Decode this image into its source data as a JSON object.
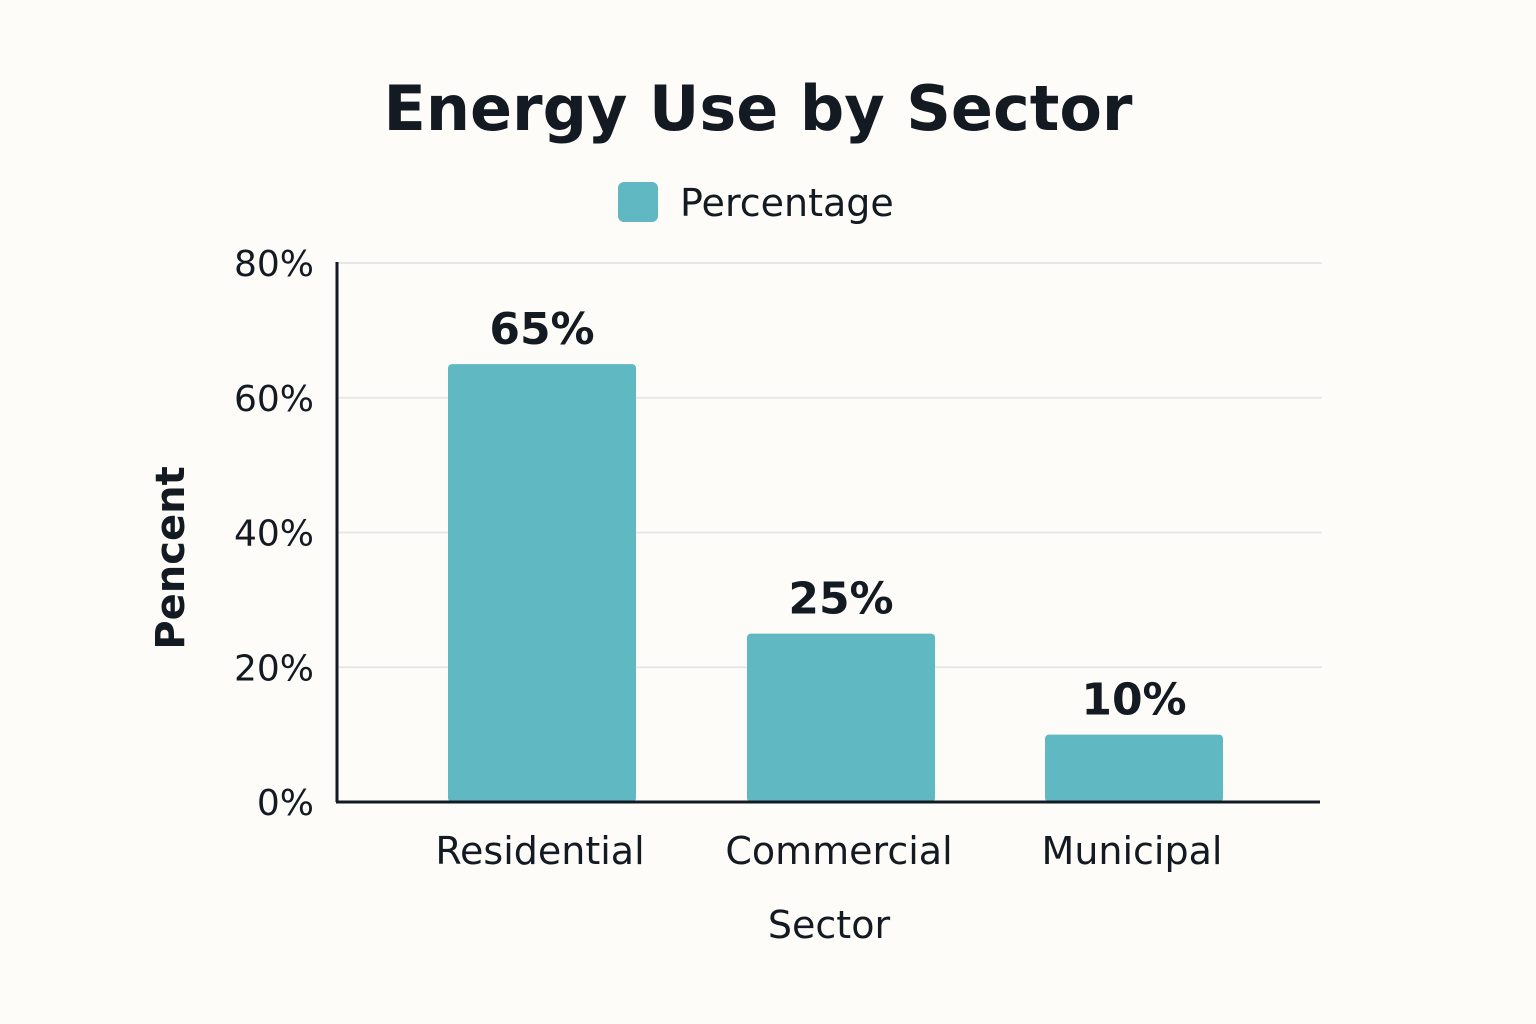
{
  "chart_data": {
    "type": "bar",
    "title": "Energy Use by Sector",
    "xlabel": "Sector",
    "ylabel": "Pencent",
    "categories": [
      "Residential",
      "Commercial",
      "Municipal"
    ],
    "series": [
      {
        "name": "Percentage",
        "values": [
          65,
          25,
          10
        ],
        "labels": [
          "65%",
          "25%",
          "10%"
        ]
      }
    ],
    "ylim": [
      0,
      80
    ],
    "yticks": [
      0,
      20,
      40,
      60,
      80
    ],
    "ytick_labels": [
      "0%",
      "20%",
      "40%",
      "60%",
      "80%"
    ],
    "grid": true,
    "legend": "top-center",
    "bar_color": "#5fb8c2"
  }
}
